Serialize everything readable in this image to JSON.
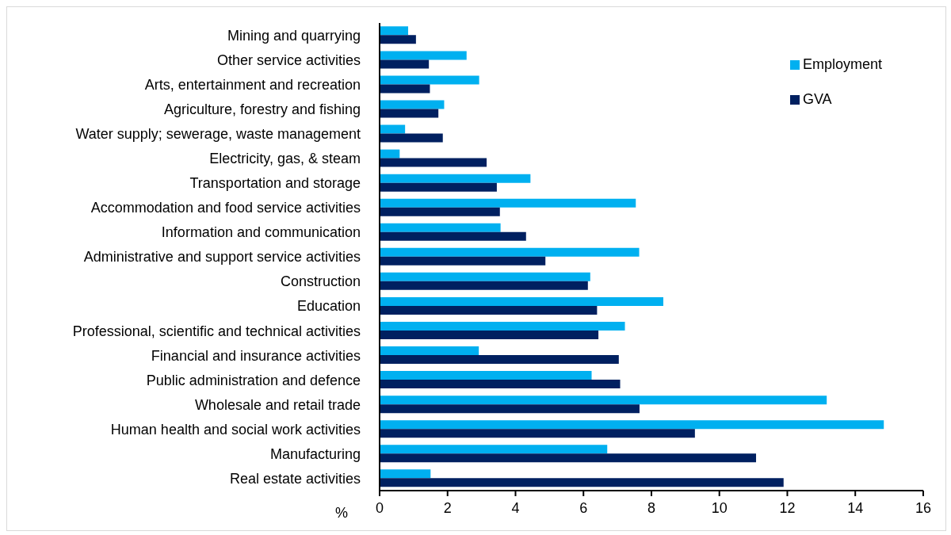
{
  "chart_data": {
    "type": "bar",
    "orientation": "horizontal",
    "xlabel": "%",
    "categories": [
      "Mining and quarrying",
      "Other service activities",
      "Arts, entertainment and recreation",
      "Agriculture, forestry and fishing",
      "Water supply; sewerage, waste management",
      "Electricity, gas,  & steam",
      "Transportation and storage",
      "Accommodation and food service activities",
      "Information and communication",
      "Administrative and support service activities",
      "Construction",
      "Education",
      "Professional, scientific and technical activities",
      "Financial and insurance activities",
      "Public administration and defence",
      "Wholesale and retail trade",
      "Human health and social work activities",
      "Manufacturing",
      "Real estate activities"
    ],
    "series": [
      {
        "name": "Employment",
        "color": "#00b0f0",
        "values": [
          0.84,
          2.56,
          2.93,
          1.9,
          0.75,
          0.59,
          4.44,
          7.54,
          3.56,
          7.64,
          6.2,
          8.35,
          7.22,
          2.92,
          6.24,
          13.16,
          14.84,
          6.7,
          1.5
        ]
      },
      {
        "name": "GVA",
        "color": "#002060",
        "values": [
          1.07,
          1.45,
          1.48,
          1.73,
          1.86,
          3.15,
          3.45,
          3.54,
          4.31,
          4.88,
          6.13,
          6.4,
          6.44,
          7.04,
          7.08,
          7.65,
          9.28,
          11.08,
          11.89
        ]
      }
    ],
    "xlim": [
      0,
      16
    ],
    "xticks": [
      0,
      2,
      4,
      6,
      8,
      10,
      12,
      14,
      16
    ],
    "grid": false,
    "legend": "top right"
  }
}
